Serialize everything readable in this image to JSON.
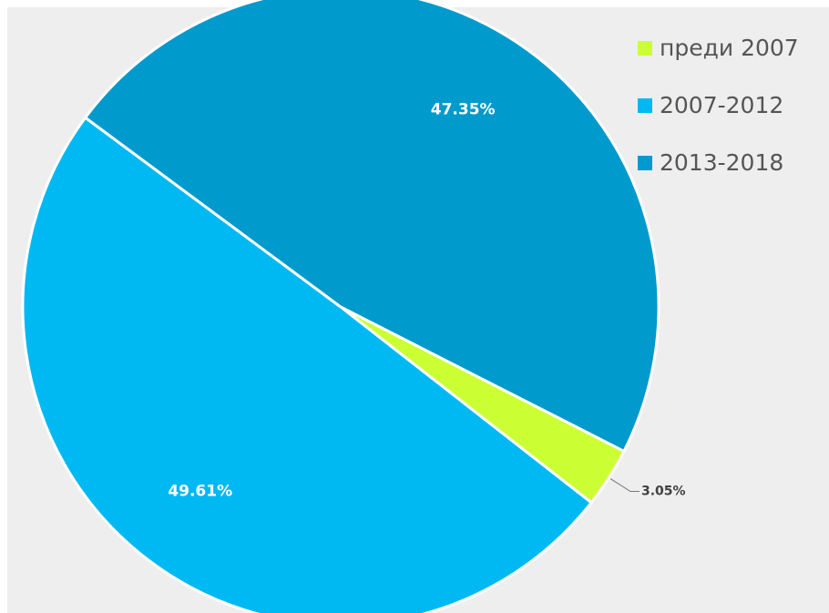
{
  "chart_data": {
    "type": "pie",
    "categories": [
      "преди 2007",
      "2007-2012",
      "2013-2018"
    ],
    "values": [
      3.05,
      49.61,
      47.35
    ],
    "value_labels": [
      "3.05%",
      "49.61%",
      "47.35%"
    ],
    "colors": [
      "#ccff33",
      "#00b9f2",
      "#009acc"
    ],
    "legend": "top-right"
  }
}
